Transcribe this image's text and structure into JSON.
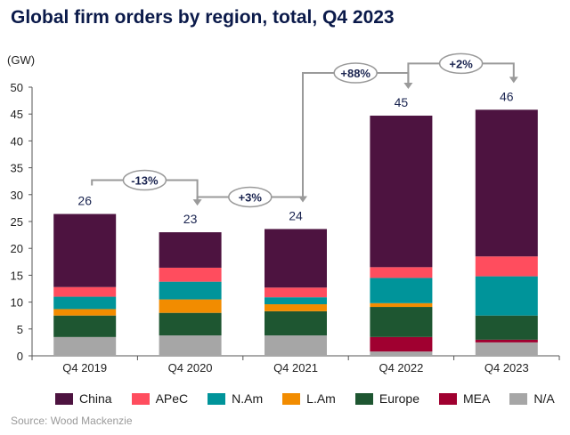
{
  "chart_data": {
    "type": "bar",
    "stacked": true,
    "title": "Global firm orders by region, total, Q4 2023",
    "ylabel": "(GW)",
    "ylim": [
      0,
      50
    ],
    "yticks": [
      0,
      5,
      10,
      15,
      20,
      25,
      30,
      35,
      40,
      45,
      50
    ],
    "categories": [
      "Q4 2019",
      "Q4 2020",
      "Q4 2021",
      "Q4 2022",
      "Q4 2023"
    ],
    "totals_labels": [
      "26",
      "23",
      "24",
      "45",
      "46"
    ],
    "series": [
      {
        "name": "N/A",
        "color": "#a6a6a6",
        "values": [
          3.5,
          3.8,
          3.8,
          0.8,
          2.5
        ]
      },
      {
        "name": "MEA",
        "color": "#a00030",
        "values": [
          0,
          0,
          0,
          2.7,
          0.5
        ]
      },
      {
        "name": "Europe",
        "color": "#1e5631",
        "values": [
          4.0,
          4.2,
          4.5,
          5.6,
          4.5
        ]
      },
      {
        "name": "L.Am",
        "color": "#f28c00",
        "values": [
          1.2,
          2.5,
          1.3,
          0.7,
          0
        ]
      },
      {
        "name": "N.Am",
        "color": "#00949a",
        "values": [
          2.3,
          3.3,
          1.3,
          4.7,
          7.3
        ]
      },
      {
        "name": "APeC",
        "color": "#ff4d5e",
        "values": [
          1.8,
          2.6,
          1.8,
          2.0,
          3.7
        ]
      },
      {
        "name": "China",
        "color": "#4d1340",
        "values": [
          13.6,
          6.6,
          10.9,
          28.2,
          27.3
        ]
      }
    ],
    "changes": [
      {
        "from": 0,
        "to": 1,
        "label": "-13%"
      },
      {
        "from": 1,
        "to": 2,
        "label": "+3%"
      },
      {
        "from": 2,
        "to": 3,
        "label": "+88%"
      },
      {
        "from": 3,
        "to": 4,
        "label": "+2%"
      }
    ],
    "legend_order": [
      "China",
      "APeC",
      "N.Am",
      "L.Am",
      "Europe",
      "MEA",
      "N/A"
    ],
    "legend_position": "bottom",
    "grid": false
  },
  "source": "Source: Wood Mackenzie"
}
